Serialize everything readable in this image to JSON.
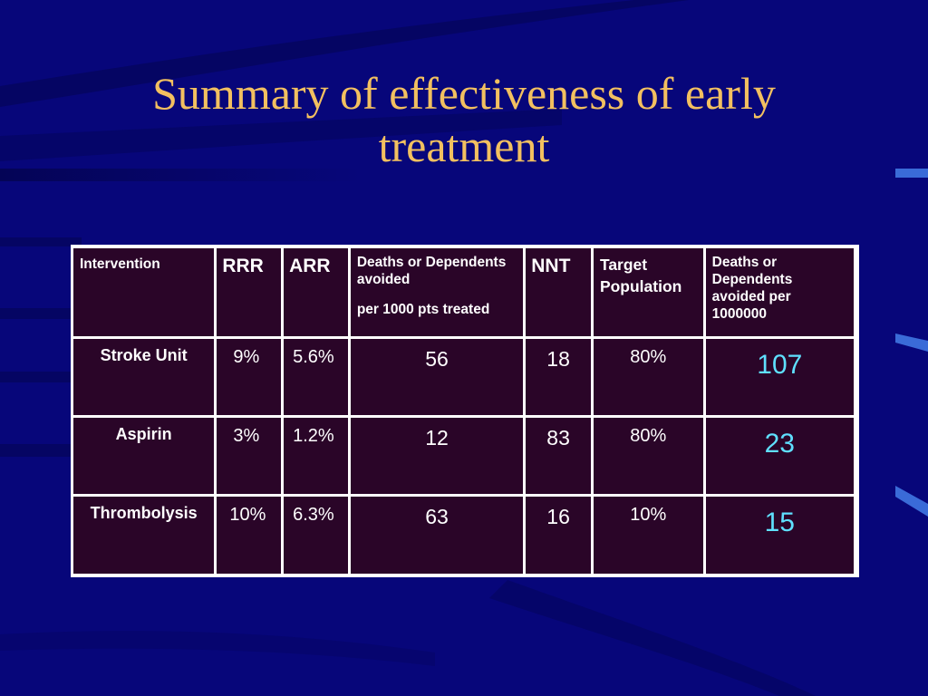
{
  "slide": {
    "title_line1": "Summary of effectiveness of early",
    "title_line2": "treatment",
    "colors": {
      "background": "#07067a",
      "title": "#f2c060",
      "cell": "#2a0528",
      "highlight": "#5fe0ff"
    }
  },
  "table": {
    "headers": {
      "intervention": "Intervention",
      "rrr": "RRR",
      "arr": "ARR",
      "deaths_line1": "Deaths or Dependents avoided",
      "deaths_line2": "per 1000 pts treated",
      "nnt": "NNT",
      "target": "Target Population",
      "deaths_million": "Deaths or Dependents avoided per 1000000"
    },
    "rows": [
      {
        "intervention": "Stroke Unit",
        "rrr": "9%",
        "arr": "5.6%",
        "deaths": "56",
        "nnt": "18",
        "target": "80%",
        "deaths_million": "107"
      },
      {
        "intervention": "Aspirin",
        "rrr": "3%",
        "arr": "1.2%",
        "deaths": "12",
        "nnt": "83",
        "target": "80%",
        "deaths_million": "23"
      },
      {
        "intervention": "Thrombolysis",
        "rrr": "10%",
        "arr": "6.3%",
        "deaths": "63",
        "nnt": "16",
        "target": "10%",
        "deaths_million": "15"
      }
    ]
  }
}
